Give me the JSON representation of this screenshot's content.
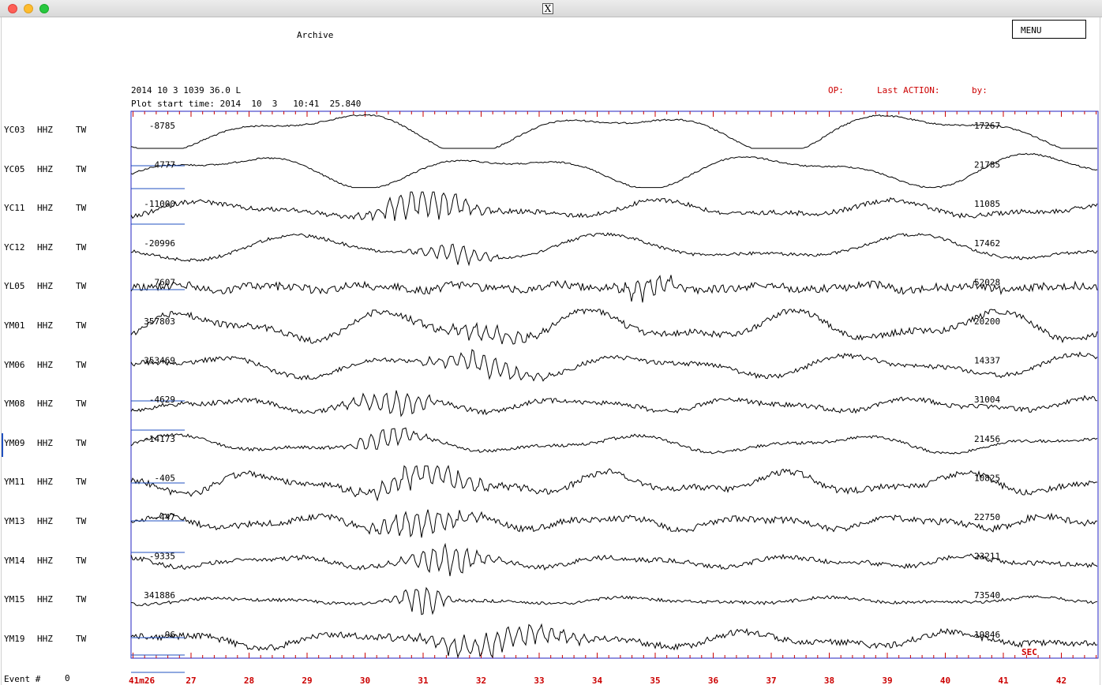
{
  "window": {
    "logo_glyph": "X"
  },
  "header": {
    "mode": "Archive",
    "event_line": "2014 10 3 1039 36.0 L",
    "plot_start": "Plot start time: 2014  10  3   10:41  25.840",
    "op_label": "OP:",
    "last_action_label": "Last ACTION:",
    "by_label": "by:",
    "menu_label": "MENU"
  },
  "footer": {
    "event_label": "Event #",
    "event_number": "0"
  },
  "axis": {
    "unit_label": "SEC",
    "start_label": "41m26",
    "seconds": [
      "27",
      "28",
      "29",
      "30",
      "31",
      "32",
      "33",
      "34",
      "35",
      "36",
      "37",
      "38",
      "39",
      "40",
      "41",
      "42"
    ]
  },
  "traces": [
    {
      "station": "YC03",
      "channel": "HHZ",
      "network": "TW",
      "min": "-8785",
      "max": "17267"
    },
    {
      "station": "YC05",
      "channel": "HHZ",
      "network": "TW",
      "min": "4777",
      "max": "21785"
    },
    {
      "station": "YC11",
      "channel": "HHZ",
      "network": "TW",
      "min": "-11000",
      "max": "11085"
    },
    {
      "station": "YC12",
      "channel": "HHZ",
      "network": "TW",
      "min": "-20996",
      "max": "17462"
    },
    {
      "station": "YL05",
      "channel": "HHZ",
      "network": "TW",
      "min": "7607",
      "max": "52028"
    },
    {
      "station": "YM01",
      "channel": "HHZ",
      "network": "TW",
      "min": "357803",
      "max": "20200"
    },
    {
      "station": "YM06",
      "channel": "HHZ",
      "network": "TW",
      "min": "353469",
      "max": "14337"
    },
    {
      "station": "YM08",
      "channel": "HHZ",
      "network": "TW",
      "min": "-4629",
      "max": "31004"
    },
    {
      "station": "YM09",
      "channel": "HHZ",
      "network": "TW",
      "min": "-14173",
      "max": "21456"
    },
    {
      "station": "YM11",
      "channel": "HHZ",
      "network": "TW",
      "min": "-405",
      "max": "10825"
    },
    {
      "station": "YM13",
      "channel": "HHZ",
      "network": "TW",
      "min": "-447",
      "max": "22750"
    },
    {
      "station": "YM14",
      "channel": "HHZ",
      "network": "TW",
      "min": "-9335",
      "max": "23211"
    },
    {
      "station": "YM15",
      "channel": "HHZ",
      "network": "TW",
      "min": "341886",
      "max": "73540"
    },
    {
      "station": "YM19",
      "channel": "HHZ",
      "network": "TW",
      "min": "-96",
      "max": "19846"
    }
  ],
  "colors": {
    "frame": "#2020c0",
    "trace": "#000000",
    "ticks": "#cc0000",
    "picks": "#2050c0"
  }
}
